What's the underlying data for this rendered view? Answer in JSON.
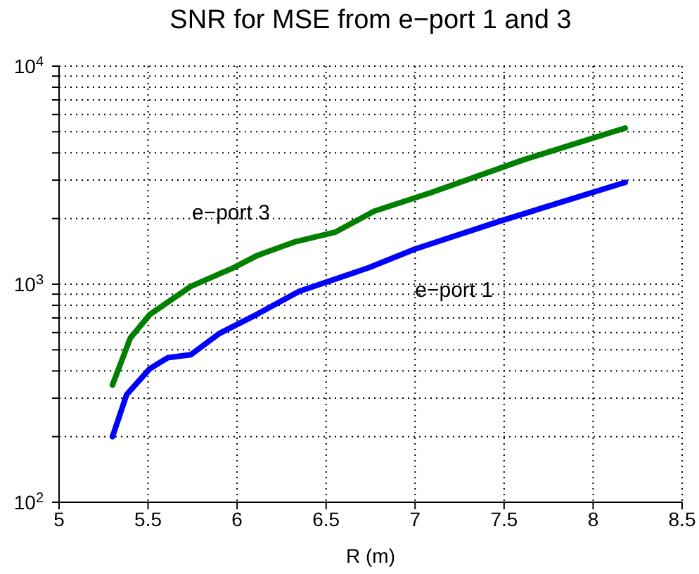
{
  "chart_data": {
    "type": "line",
    "title": "SNR for MSE from e−port 1 and 3",
    "xlabel": "R (m)",
    "xlim": [
      5,
      8.5
    ],
    "xticks": [
      5,
      5.5,
      6,
      6.5,
      7,
      7.5,
      8,
      8.5
    ],
    "ylim": [
      100,
      10000
    ],
    "log": "y",
    "yticks": [
      {
        "value": 100,
        "label": "10$^{2}$"
      },
      {
        "value": 200,
        "label": null
      },
      {
        "value": 300,
        "label": null
      },
      {
        "value": 400,
        "label": null
      },
      {
        "value": 500,
        "label": null
      },
      {
        "value": 600,
        "label": null
      },
      {
        "value": 700,
        "label": null
      },
      {
        "value": 800,
        "label": null
      },
      {
        "value": 900,
        "label": null
      },
      {
        "value": 1000,
        "label": "10$^{3}$"
      },
      {
        "value": 2000,
        "label": null
      },
      {
        "value": 3000,
        "label": null
      },
      {
        "value": 4000,
        "label": null
      },
      {
        "value": 5000,
        "label": null
      },
      {
        "value": 6000,
        "label": null
      },
      {
        "value": 7000,
        "label": null
      },
      {
        "value": 8000,
        "label": null
      },
      {
        "value": 9000,
        "label": null
      },
      {
        "value": 10000,
        "label": "10$^{4}$"
      }
    ],
    "grid": true,
    "marker": "none",
    "line_style": "solid",
    "series": [
      {
        "name": "e−port 1",
        "color": "#0000ff",
        "x": [
          5.3,
          5.38,
          5.51,
          5.61,
          5.74,
          5.9,
          6.11,
          6.35,
          6.74,
          7.0,
          7.48,
          8.18
        ],
        "values": [
          200,
          312,
          410,
          460,
          475,
          594,
          726,
          929,
          1190,
          1450,
          1950,
          2930
        ]
      },
      {
        "name": "e−port 3",
        "color": "#007f00",
        "x": [
          5.3,
          5.4,
          5.51,
          5.74,
          5.98,
          6.11,
          6.32,
          6.55,
          6.77,
          7.09,
          7.61,
          8.18
        ],
        "values": [
          345,
          566,
          726,
          977,
          1190,
          1350,
          1560,
          1730,
          2160,
          2630,
          3720,
          5200
        ]
      }
    ]
  }
}
